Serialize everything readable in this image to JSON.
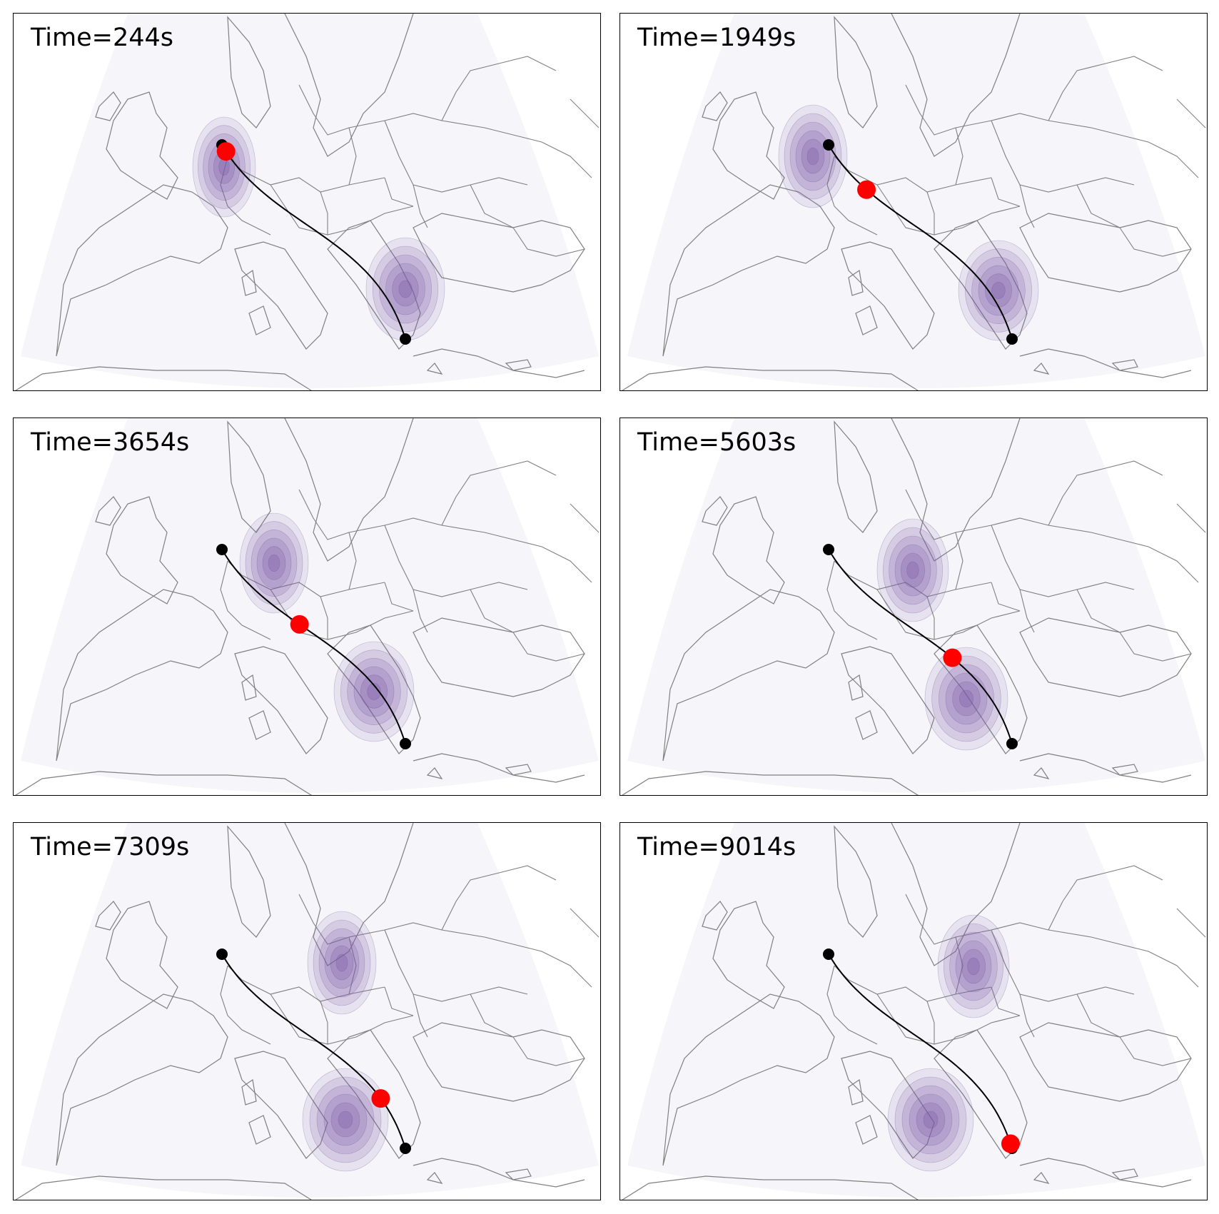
{
  "figure": {
    "panels": [
      {
        "label": "Time=244s",
        "progress": 0.027
      },
      {
        "label": "Time=1949s",
        "progress": 0.216
      },
      {
        "label": "Time=3654s",
        "progress": 0.405
      },
      {
        "label": "Time=5603s",
        "progress": 0.622
      },
      {
        "label": "Time=7309s",
        "progress": 0.811
      },
      {
        "label": "Time=9014s",
        "progress": 0.985
      }
    ]
  },
  "colors": {
    "land_bg": "#f6f6fa",
    "borders": "#808080",
    "path": "#000000",
    "endpoint": "#000000",
    "current_position": "#ff0000",
    "density": "#7a5aa8"
  },
  "icons": {
    "endpoint": "black-dot",
    "current_position": "red-dot"
  }
}
